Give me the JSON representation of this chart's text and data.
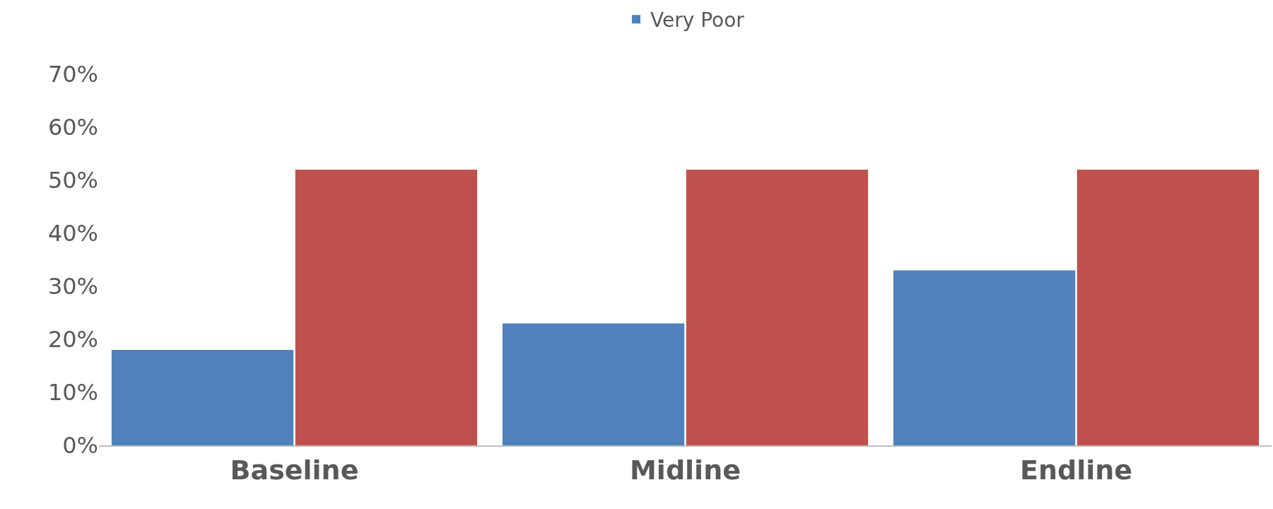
{
  "chart_data": {
    "type": "bar",
    "categories": [
      "Baseline",
      "Midline",
      "Endline"
    ],
    "series": [
      {
        "name": "Very Poor",
        "color": "#4f81bd",
        "values": [
          18,
          23,
          33
        ]
      },
      {
        "color": "#c0504d",
        "values": [
          52,
          52,
          52
        ]
      }
    ],
    "ylim": [
      0,
      70
    ],
    "yticks": [
      {
        "value": 0,
        "label": "0%"
      },
      {
        "value": 10,
        "label": "10%"
      },
      {
        "value": 20,
        "label": "20%"
      },
      {
        "value": 30,
        "label": "30%"
      },
      {
        "value": 40,
        "label": "40%"
      },
      {
        "value": 50,
        "label": "50%"
      },
      {
        "value": 60,
        "label": "60%"
      },
      {
        "value": 70,
        "label": "70%"
      }
    ],
    "legend": "top"
  }
}
